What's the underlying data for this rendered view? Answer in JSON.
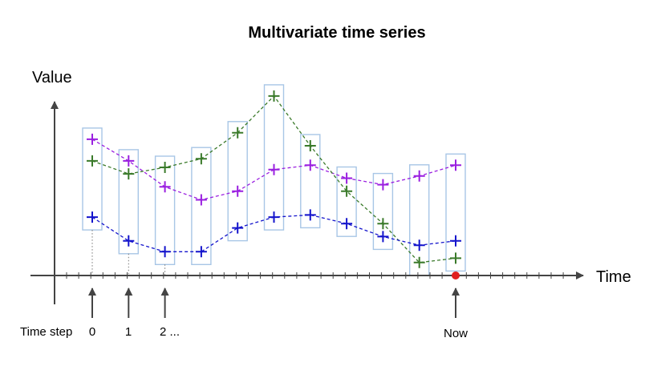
{
  "title": "Multivariate time series",
  "y_axis_label": "Value",
  "x_axis_label": "Time",
  "time_step_labels": {
    "prefix": "Time step",
    "step0": "0",
    "step1": "1",
    "step2": "2 ...",
    "now": "Now"
  },
  "colors": {
    "axis": "#444444",
    "window_box": "#a8c6e6",
    "now_marker": "#e02020",
    "guide": "#777777"
  },
  "chart_data": {
    "type": "line",
    "x_label": "Time",
    "y_label": "Value",
    "time_steps": [
      0,
      1,
      2,
      3,
      4,
      5,
      6,
      7,
      8,
      9,
      10
    ],
    "series": [
      {
        "color": "#9a1fe0",
        "values": [
          6.3,
          5.3,
          4.1,
          3.5,
          3.9,
          4.9,
          5.1,
          4.5,
          4.2,
          4.6,
          5.1
        ]
      },
      {
        "color": "#3a7a2a",
        "values": [
          5.3,
          4.7,
          5.0,
          5.4,
          6.6,
          8.3,
          6.0,
          3.9,
          2.4,
          0.6,
          0.8
        ]
      },
      {
        "color": "#1414cc",
        "values": [
          2.7,
          1.6,
          1.1,
          1.1,
          2.2,
          2.7,
          2.8,
          2.4,
          1.8,
          1.4,
          1.6
        ]
      }
    ],
    "now_index": 10
  }
}
